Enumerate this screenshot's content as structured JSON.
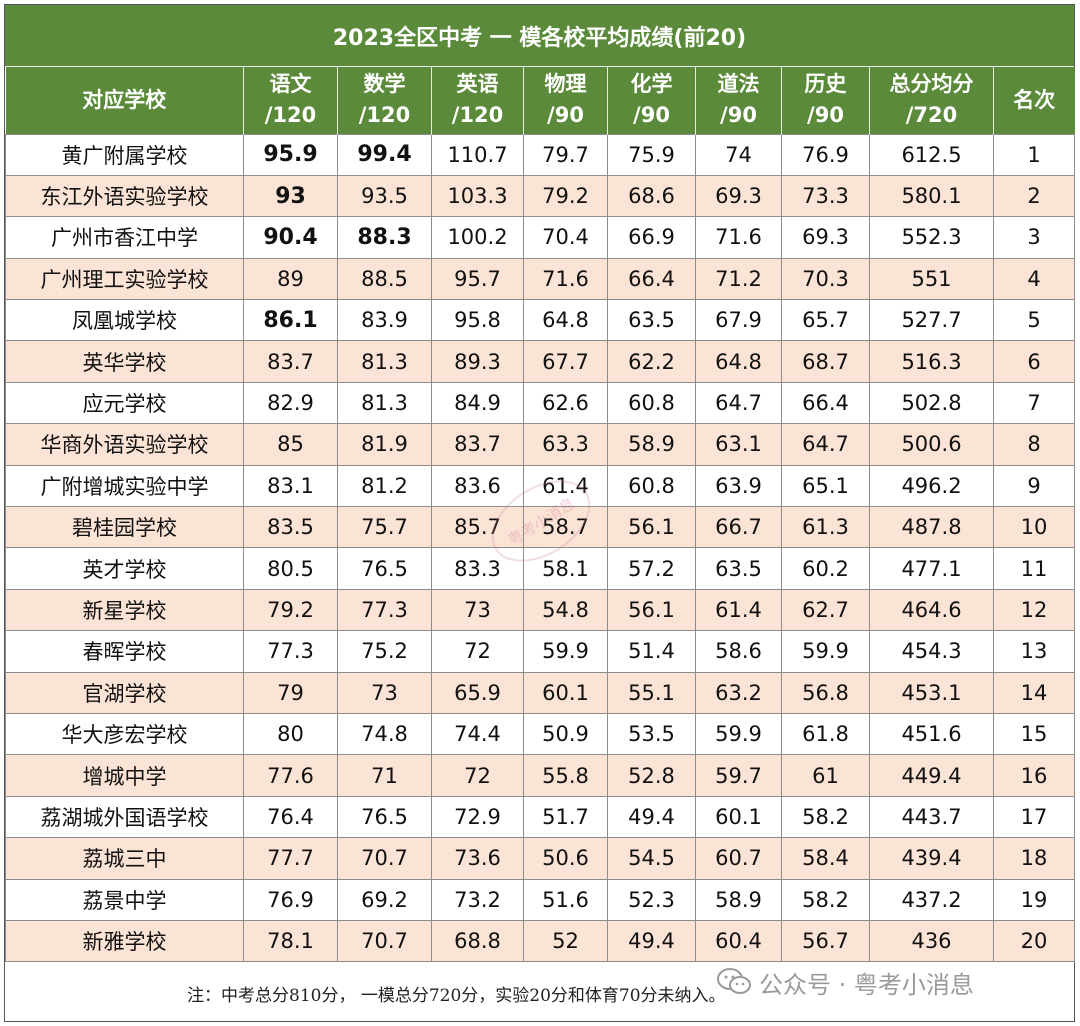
{
  "title": "2023全区中考 一 模各校平均成绩(前20)",
  "headers": [
    {
      "line1": "对应学校",
      "line2": ""
    },
    {
      "line1": "语文",
      "line2": "/120"
    },
    {
      "line1": "数学",
      "line2": "/120"
    },
    {
      "line1": "英语",
      "line2": "/120"
    },
    {
      "line1": "物理",
      "line2": "/90"
    },
    {
      "line1": "化学",
      "line2": "/90"
    },
    {
      "line1": "道法",
      "line2": "/90"
    },
    {
      "line1": "历史",
      "line2": "/90"
    },
    {
      "line1": "总分均分",
      "line2": "/720"
    },
    {
      "line1": "名次",
      "line2": ""
    }
  ],
  "rows": [
    {
      "school": "黄广附属学校",
      "scores": [
        "95.9",
        "99.4",
        "110.7",
        "79.7",
        "75.9",
        "74",
        "76.9",
        "612.5"
      ],
      "rank": "1",
      "bold": [
        0,
        1
      ]
    },
    {
      "school": "东江外语实验学校",
      "scores": [
        "93",
        "93.5",
        "103.3",
        "79.2",
        "68.6",
        "69.3",
        "73.3",
        "580.1"
      ],
      "rank": "2",
      "bold": [
        0
      ]
    },
    {
      "school": "广州市香江中学",
      "scores": [
        "90.4",
        "88.3",
        "100.2",
        "70.4",
        "66.9",
        "71.6",
        "69.3",
        "552.3"
      ],
      "rank": "3",
      "bold": [
        0,
        1
      ]
    },
    {
      "school": "广州理工实验学校",
      "scores": [
        "89",
        "88.5",
        "95.7",
        "71.6",
        "66.4",
        "71.2",
        "70.3",
        "551"
      ],
      "rank": "4",
      "bold": []
    },
    {
      "school": "凤凰城学校",
      "scores": [
        "86.1",
        "83.9",
        "95.8",
        "64.8",
        "63.5",
        "67.9",
        "65.7",
        "527.7"
      ],
      "rank": "5",
      "bold": [
        0
      ]
    },
    {
      "school": "英华学校",
      "scores": [
        "83.7",
        "81.3",
        "89.3",
        "67.7",
        "62.2",
        "64.8",
        "68.7",
        "516.3"
      ],
      "rank": "6",
      "bold": []
    },
    {
      "school": "应元学校",
      "scores": [
        "82.9",
        "81.3",
        "84.9",
        "62.6",
        "60.8",
        "64.7",
        "66.4",
        "502.8"
      ],
      "rank": "7",
      "bold": []
    },
    {
      "school": "华商外语实验学校",
      "scores": [
        "85",
        "81.9",
        "83.7",
        "63.3",
        "58.9",
        "63.1",
        "64.7",
        "500.6"
      ],
      "rank": "8",
      "bold": []
    },
    {
      "school": "广附增城实验中学",
      "scores": [
        "83.1",
        "81.2",
        "83.6",
        "61.4",
        "60.8",
        "63.9",
        "65.1",
        "496.2"
      ],
      "rank": "9",
      "bold": []
    },
    {
      "school": "碧桂园学校",
      "scores": [
        "83.5",
        "75.7",
        "85.7",
        "58.7",
        "56.1",
        "66.7",
        "61.3",
        "487.8"
      ],
      "rank": "10",
      "bold": []
    },
    {
      "school": "英才学校",
      "scores": [
        "80.5",
        "76.5",
        "83.3",
        "58.1",
        "57.2",
        "63.5",
        "60.2",
        "477.1"
      ],
      "rank": "11",
      "bold": []
    },
    {
      "school": "新星学校",
      "scores": [
        "79.2",
        "77.3",
        "73",
        "54.8",
        "56.1",
        "61.4",
        "62.7",
        "464.6"
      ],
      "rank": "12",
      "bold": []
    },
    {
      "school": "春晖学校",
      "scores": [
        "77.3",
        "75.2",
        "72",
        "59.9",
        "51.4",
        "58.6",
        "59.9",
        "454.3"
      ],
      "rank": "13",
      "bold": []
    },
    {
      "school": "官湖学校",
      "scores": [
        "79",
        "73",
        "65.9",
        "60.1",
        "55.1",
        "63.2",
        "56.8",
        "453.1"
      ],
      "rank": "14",
      "bold": []
    },
    {
      "school": "华大彦宏学校",
      "scores": [
        "80",
        "74.8",
        "74.4",
        "50.9",
        "53.5",
        "59.9",
        "61.8",
        "451.6"
      ],
      "rank": "15",
      "bold": []
    },
    {
      "school": "增城中学",
      "scores": [
        "77.6",
        "71",
        "72",
        "55.8",
        "52.8",
        "59.7",
        "61",
        "449.4"
      ],
      "rank": "16",
      "bold": []
    },
    {
      "school": "荔湖城外国语学校",
      "scores": [
        "76.4",
        "76.5",
        "72.9",
        "51.7",
        "49.4",
        "60.1",
        "58.2",
        "443.7"
      ],
      "rank": "17",
      "bold": []
    },
    {
      "school": "荔城三中",
      "scores": [
        "77.7",
        "70.7",
        "73.6",
        "50.6",
        "54.5",
        "60.7",
        "58.4",
        "439.4"
      ],
      "rank": "18",
      "bold": []
    },
    {
      "school": "荔景中学",
      "scores": [
        "76.9",
        "69.2",
        "73.2",
        "51.6",
        "52.3",
        "58.9",
        "58.2",
        "437.2"
      ],
      "rank": "19",
      "bold": []
    },
    {
      "school": "新雅学校",
      "scores": [
        "78.1",
        "70.7",
        "68.8",
        "52",
        "49.4",
        "60.4",
        "56.7",
        "436"
      ],
      "rank": "20",
      "bold": []
    }
  ],
  "note": "注：中考总分810分， 一模总分720分，实验20分和体育70分未纳入。",
  "watermark": {
    "text": "公众号 · 粤考小消息",
    "icon": "wechat-icon"
  },
  "stamp": {
    "text": "粤考小消息"
  },
  "colors": {
    "header_green": "#5a8a3a",
    "stripe_peach": "#fbe4d5"
  }
}
